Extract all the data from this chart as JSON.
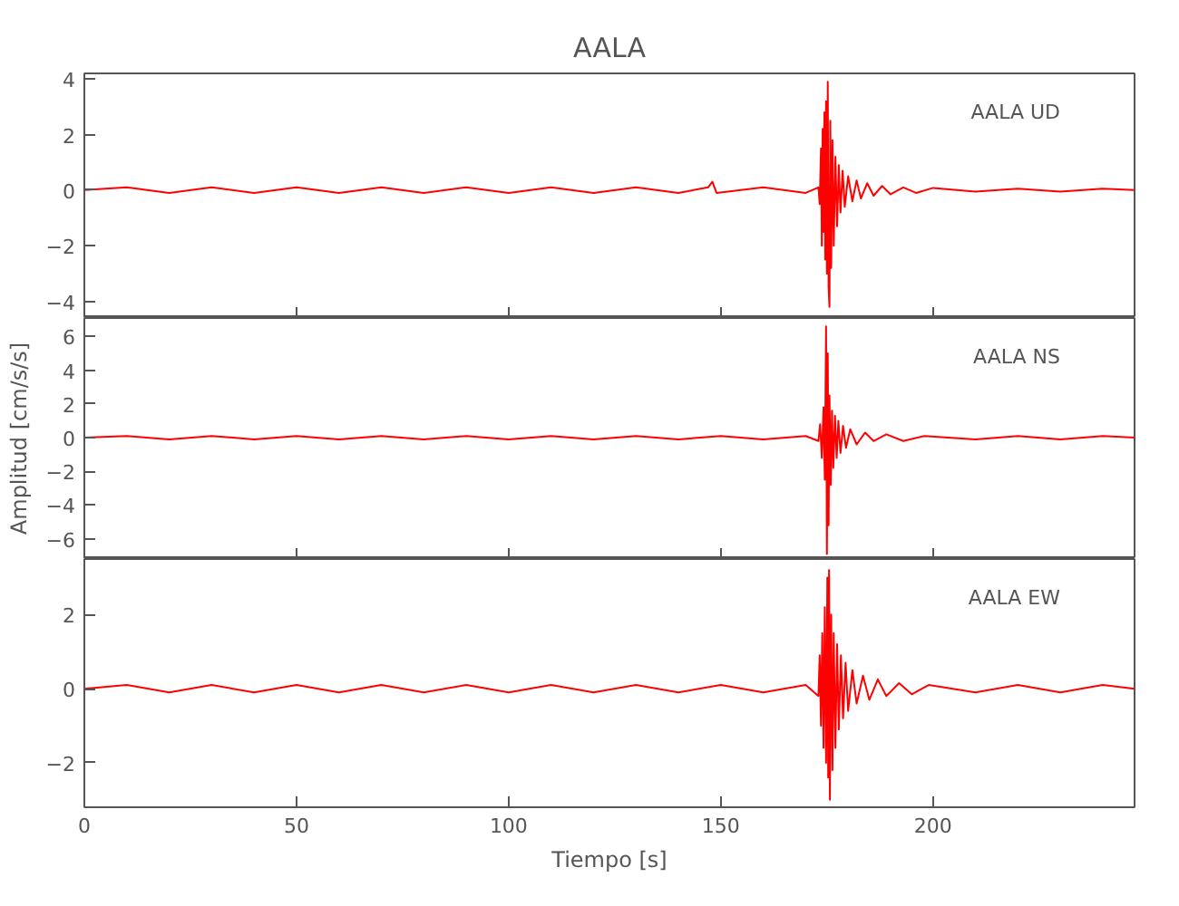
{
  "chart_data": [
    {
      "type": "line",
      "title": "AALA",
      "annotations": [
        "AALA   UD"
      ],
      "color": "#ff0000",
      "xlim": [
        0,
        247.5
      ],
      "xticks": [
        0,
        50,
        100,
        150,
        200
      ],
      "ylim": [
        -4.6,
        4.2
      ],
      "yticks": [
        -4,
        -2,
        0,
        2,
        4
      ],
      "tick_labels": "y",
      "grid": false,
      "x": [
        0,
        10,
        20,
        30,
        40,
        50,
        60,
        70,
        80,
        90,
        100,
        110,
        120,
        130,
        140,
        147,
        148,
        149,
        160,
        170,
        173.0,
        173.3,
        173.6,
        173.8,
        174.0,
        174.2,
        174.4,
        174.6,
        174.8,
        175.0,
        175.2,
        175.4,
        175.6,
        175.8,
        176.0,
        176.3,
        176.6,
        177.0,
        177.4,
        177.8,
        178.2,
        178.7,
        179.2,
        180,
        181,
        182,
        183,
        184.5,
        186,
        188,
        190,
        193,
        196,
        200,
        210,
        220,
        230,
        240,
        247.5
      ],
      "values": [
        0,
        0.1,
        -0.1,
        0.1,
        -0.1,
        0.1,
        -0.1,
        0.1,
        -0.1,
        0.1,
        -0.1,
        0.1,
        -0.1,
        0.1,
        -0.1,
        0.1,
        0.3,
        -0.1,
        0.1,
        -0.1,
        0.1,
        -0.5,
        1.5,
        -2.0,
        2.2,
        -1.5,
        2.8,
        -2.5,
        3.2,
        -3.0,
        3.9,
        -3.5,
        -4.2,
        2.5,
        -2.8,
        1.8,
        -2.0,
        1.2,
        -1.3,
        0.9,
        -0.8,
        0.7,
        -0.6,
        0.5,
        -0.4,
        0.35,
        -0.3,
        0.25,
        -0.2,
        0.15,
        -0.15,
        0.1,
        -0.1,
        0.08,
        -0.05,
        0.05,
        -0.05,
        0.05,
        0
      ]
    },
    {
      "type": "line",
      "ylabel": "Amplitud [cm/s/s]",
      "annotations": [
        "AALA   NS"
      ],
      "color": "#ff0000",
      "xlim": [
        0,
        247.5
      ],
      "xticks": [
        0,
        50,
        100,
        150,
        200
      ],
      "ylim": [
        -7.2,
        7.1
      ],
      "yticks": [
        -6,
        -4,
        -2,
        0,
        2,
        4,
        6
      ],
      "tick_labels": "y",
      "grid": false,
      "x": [
        0,
        10,
        20,
        30,
        40,
        50,
        60,
        70,
        80,
        90,
        100,
        110,
        120,
        130,
        140,
        150,
        160,
        170,
        173.0,
        173.4,
        173.8,
        174.2,
        174.5,
        174.8,
        175.0,
        175.2,
        175.4,
        175.6,
        175.9,
        176.2,
        176.5,
        176.9,
        177.3,
        177.7,
        178.2,
        178.8,
        179.5,
        180.5,
        182,
        184,
        186,
        189,
        193,
        198,
        210,
        220,
        230,
        240,
        247.5
      ],
      "values": [
        0,
        0.1,
        -0.1,
        0.1,
        -0.1,
        0.1,
        -0.1,
        0.1,
        -0.1,
        0.1,
        -0.1,
        0.1,
        -0.1,
        0.1,
        -0.1,
        0.1,
        -0.1,
        0.1,
        -0.2,
        0.8,
        -1.2,
        1.8,
        -2.5,
        6.6,
        -6.9,
        5.0,
        -5.2,
        2.5,
        -2.8,
        1.6,
        -1.8,
        1.3,
        -1.2,
        1.0,
        -0.9,
        0.7,
        -0.6,
        0.5,
        -0.4,
        0.3,
        -0.2,
        0.2,
        -0.2,
        0.1,
        -0.1,
        0.1,
        -0.1,
        0.1,
        0
      ]
    },
    {
      "type": "line",
      "xlabel": "Tiempo [s]",
      "annotations": [
        "AALA   EW"
      ],
      "color": "#ff0000",
      "xlim": [
        0,
        247.5
      ],
      "xticks": [
        0,
        50,
        100,
        150,
        200
      ],
      "ylim": [
        -3.2,
        3.5
      ],
      "yticks": [
        -2,
        0,
        2
      ],
      "grid": false,
      "x": [
        0,
        10,
        20,
        30,
        40,
        50,
        60,
        70,
        80,
        90,
        100,
        110,
        120,
        130,
        140,
        150,
        160,
        170,
        173.0,
        173.3,
        173.6,
        173.9,
        174.2,
        174.5,
        174.8,
        175.1,
        175.3,
        175.5,
        175.7,
        176.0,
        176.3,
        176.6,
        177.0,
        177.4,
        177.8,
        178.3,
        178.8,
        179.4,
        180,
        181,
        182,
        183.5,
        185,
        187,
        189,
        192,
        195,
        199,
        210,
        220,
        230,
        240,
        247.5
      ],
      "values": [
        0,
        0.1,
        -0.1,
        0.1,
        -0.1,
        0.1,
        -0.1,
        0.1,
        -0.1,
        0.1,
        -0.1,
        0.1,
        -0.1,
        0.1,
        -0.1,
        0.1,
        -0.1,
        0.1,
        -0.2,
        0.9,
        -1.0,
        1.5,
        -1.6,
        2.2,
        -2.0,
        3.0,
        -2.4,
        3.2,
        -3.0,
        2.0,
        -2.2,
        1.5,
        -1.6,
        1.2,
        -1.1,
        0.9,
        -0.8,
        0.7,
        -0.6,
        0.5,
        -0.4,
        0.35,
        -0.3,
        0.25,
        -0.2,
        0.15,
        -0.15,
        0.1,
        -0.1,
        0.1,
        -0.1,
        0.1,
        0
      ]
    }
  ]
}
